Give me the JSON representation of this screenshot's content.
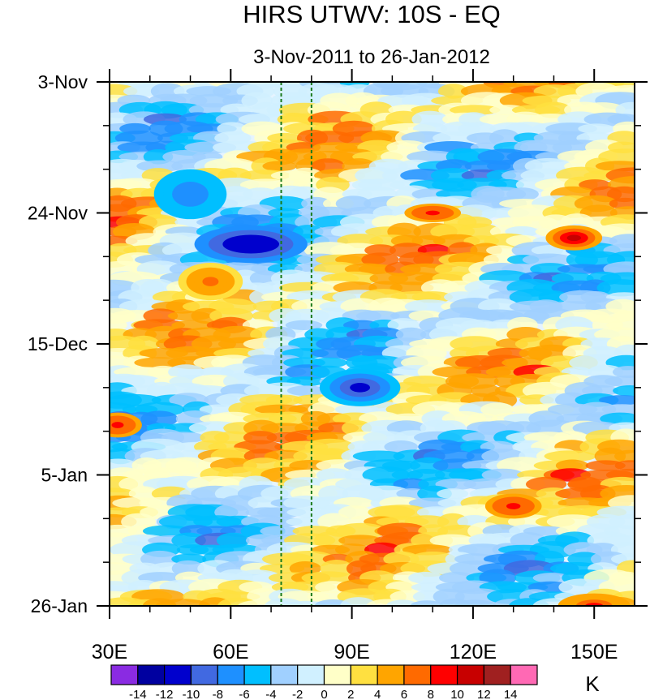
{
  "chart_data": {
    "type": "heatmap",
    "title": "HIRS UTWV: 10S - EQ",
    "subtitle": "3-Nov-2011 to 26-Jan-2012",
    "x_axis": {
      "range": [
        30,
        160
      ],
      "unit": "degrees east longitude",
      "tick_values": [
        30,
        60,
        90,
        120,
        150
      ],
      "tick_labels": [
        "30E",
        "60E",
        "90E",
        "120E",
        "150E"
      ]
    },
    "y_axis": {
      "range_days": [
        0,
        84
      ],
      "direction": "time increases downward",
      "tick_days": [
        0,
        21,
        42,
        63,
        84
      ],
      "tick_labels": [
        "3-Nov",
        "24-Nov",
        "15-Dec",
        "5-Jan",
        "26-Jan"
      ]
    },
    "reference_lines": [
      {
        "longitude": 72.5,
        "style": "dashed",
        "color": "#1a7a1a"
      },
      {
        "longitude": 80,
        "style": "dashed",
        "color": "#1a7a1a"
      }
    ],
    "colorbar": {
      "unit": "K",
      "levels": [
        -14,
        -12,
        -10,
        -8,
        -6,
        -4,
        -2,
        0,
        2,
        4,
        6,
        8,
        10,
        12,
        14
      ],
      "level_labels": [
        "-14",
        "-12",
        "-10",
        "-8",
        "-6",
        "-4",
        "-2",
        "0",
        "2",
        "4",
        "6",
        "8",
        "10",
        "12",
        "14"
      ],
      "colors": [
        "#8a2be2",
        "#0000a0",
        "#0000cd",
        "#4169e1",
        "#1e90ff",
        "#00bfff",
        "#a0d0ff",
        "#d0f0ff",
        "#ffffc8",
        "#ffe040",
        "#ffa500",
        "#ff6a00",
        "#ff0000",
        "#c80000",
        "#a02020",
        "#ff69b4"
      ]
    },
    "features": [
      {
        "lon": 65,
        "day": 26,
        "value": -12,
        "extent_lon": 28,
        "extent_day": 6
      },
      {
        "lon": 50,
        "day": 18,
        "value": -8,
        "extent_lon": 18,
        "extent_day": 8
      },
      {
        "lon": 110,
        "day": 21,
        "value": 9,
        "extent_lon": 14,
        "extent_day": 3
      },
      {
        "lon": 145,
        "day": 25,
        "value": 10,
        "extent_lon": 14,
        "extent_day": 4
      },
      {
        "lon": 55,
        "day": 32,
        "value": 7,
        "extent_lon": 16,
        "extent_day": 6
      },
      {
        "lon": 92,
        "day": 49,
        "value": -11,
        "extent_lon": 20,
        "extent_day": 6
      },
      {
        "lon": 32,
        "day": 55,
        "value": 9,
        "extent_lon": 12,
        "extent_day": 4
      },
      {
        "lon": 130,
        "day": 68,
        "value": 9,
        "extent_lon": 14,
        "extent_day": 4
      },
      {
        "lon": 150,
        "day": 84,
        "value": 8,
        "extent_lon": 18,
        "extent_day": 4
      }
    ]
  }
}
